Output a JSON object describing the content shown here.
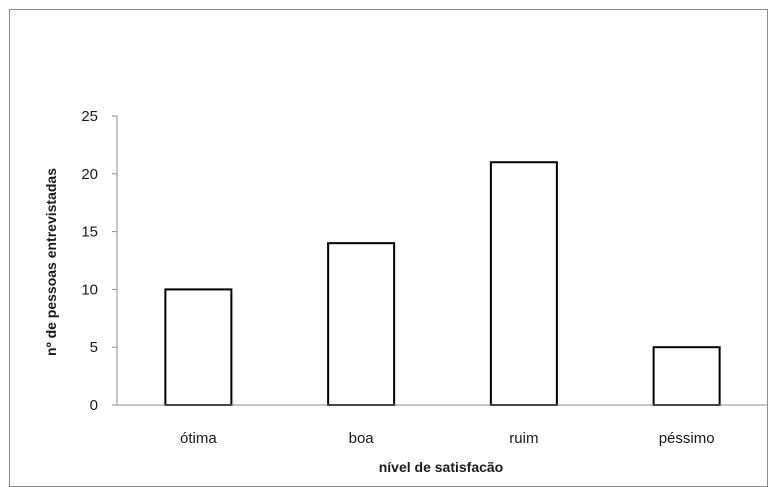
{
  "chart_data": {
    "type": "bar",
    "title": "",
    "categories": [
      "ótima",
      "boa",
      "ruim",
      "péssimo"
    ],
    "values": [
      10,
      14,
      21,
      5
    ],
    "xlabel": "nível de satisfacão",
    "ylabel": "nº de pessoas entrevistadas",
    "ylim": [
      0,
      25
    ],
    "yticks": [
      0,
      5,
      10,
      15,
      20,
      25
    ],
    "grid": false,
    "legend": "none",
    "colors": {
      "bar_fill": "#ffffff",
      "bar_stroke": "#000000",
      "axis": "#8c8c8c",
      "frame": "#8c8c8c"
    }
  }
}
